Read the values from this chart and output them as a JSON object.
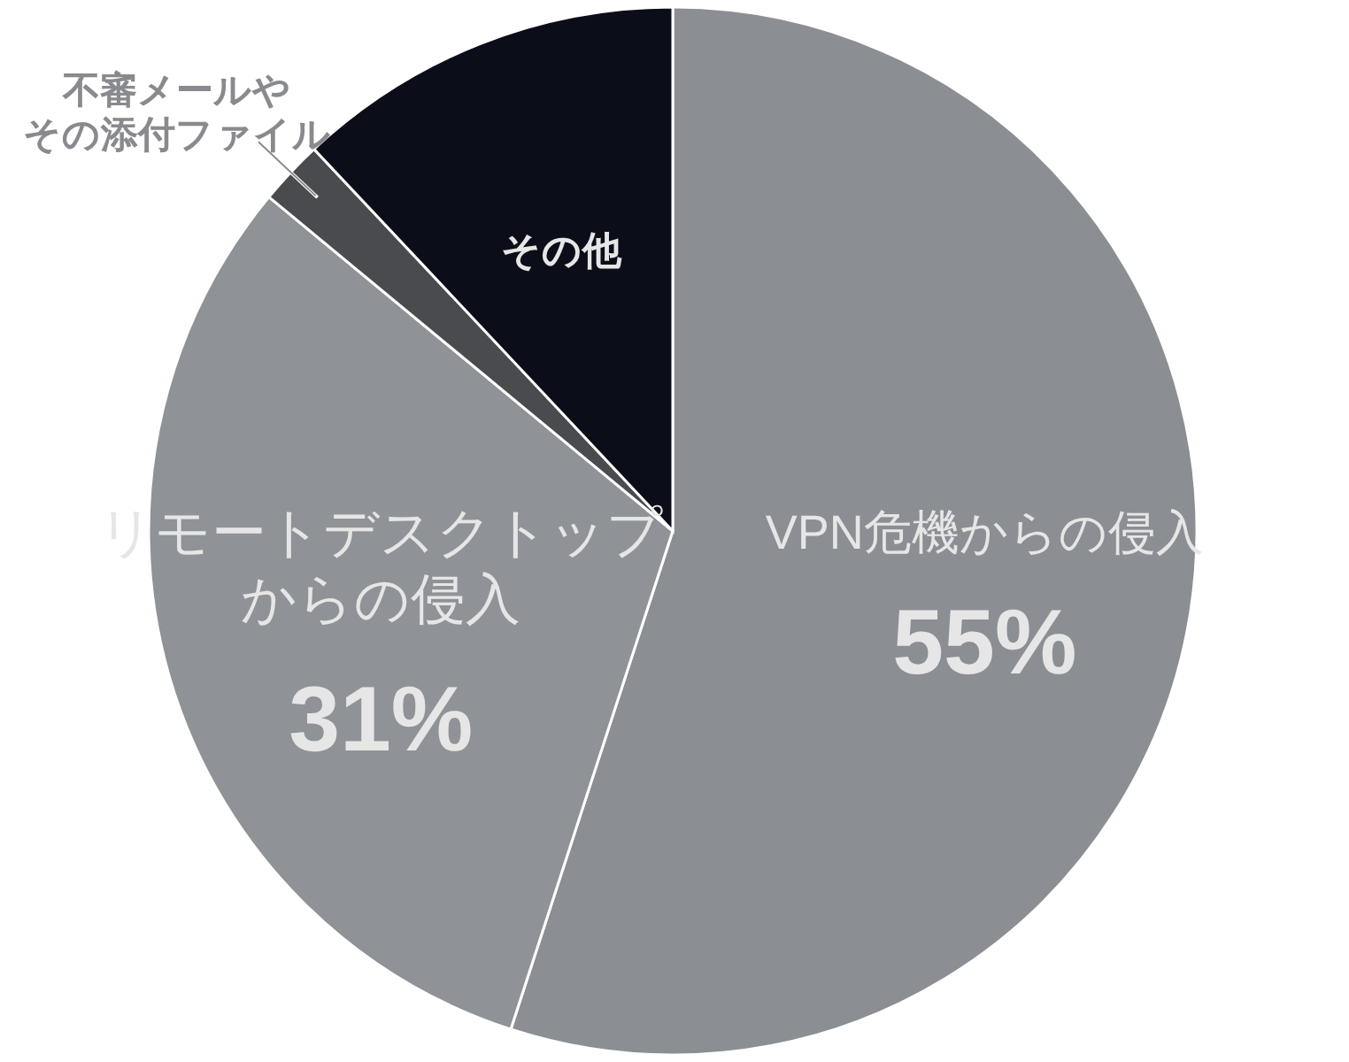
{
  "chart_data": {
    "type": "pie",
    "categories": [
      "VPN危機からの侵入",
      "リモートデスクトップからの侵入",
      "不審メールやその添付ファイル",
      "その他"
    ],
    "values": [
      55,
      31,
      2,
      12
    ],
    "value_labels": [
      "55%",
      "31%",
      null,
      null
    ],
    "colors": [
      "#8b8e93",
      "#8f9296",
      "#4a4b4f",
      "#0b0d18"
    ]
  }
}
